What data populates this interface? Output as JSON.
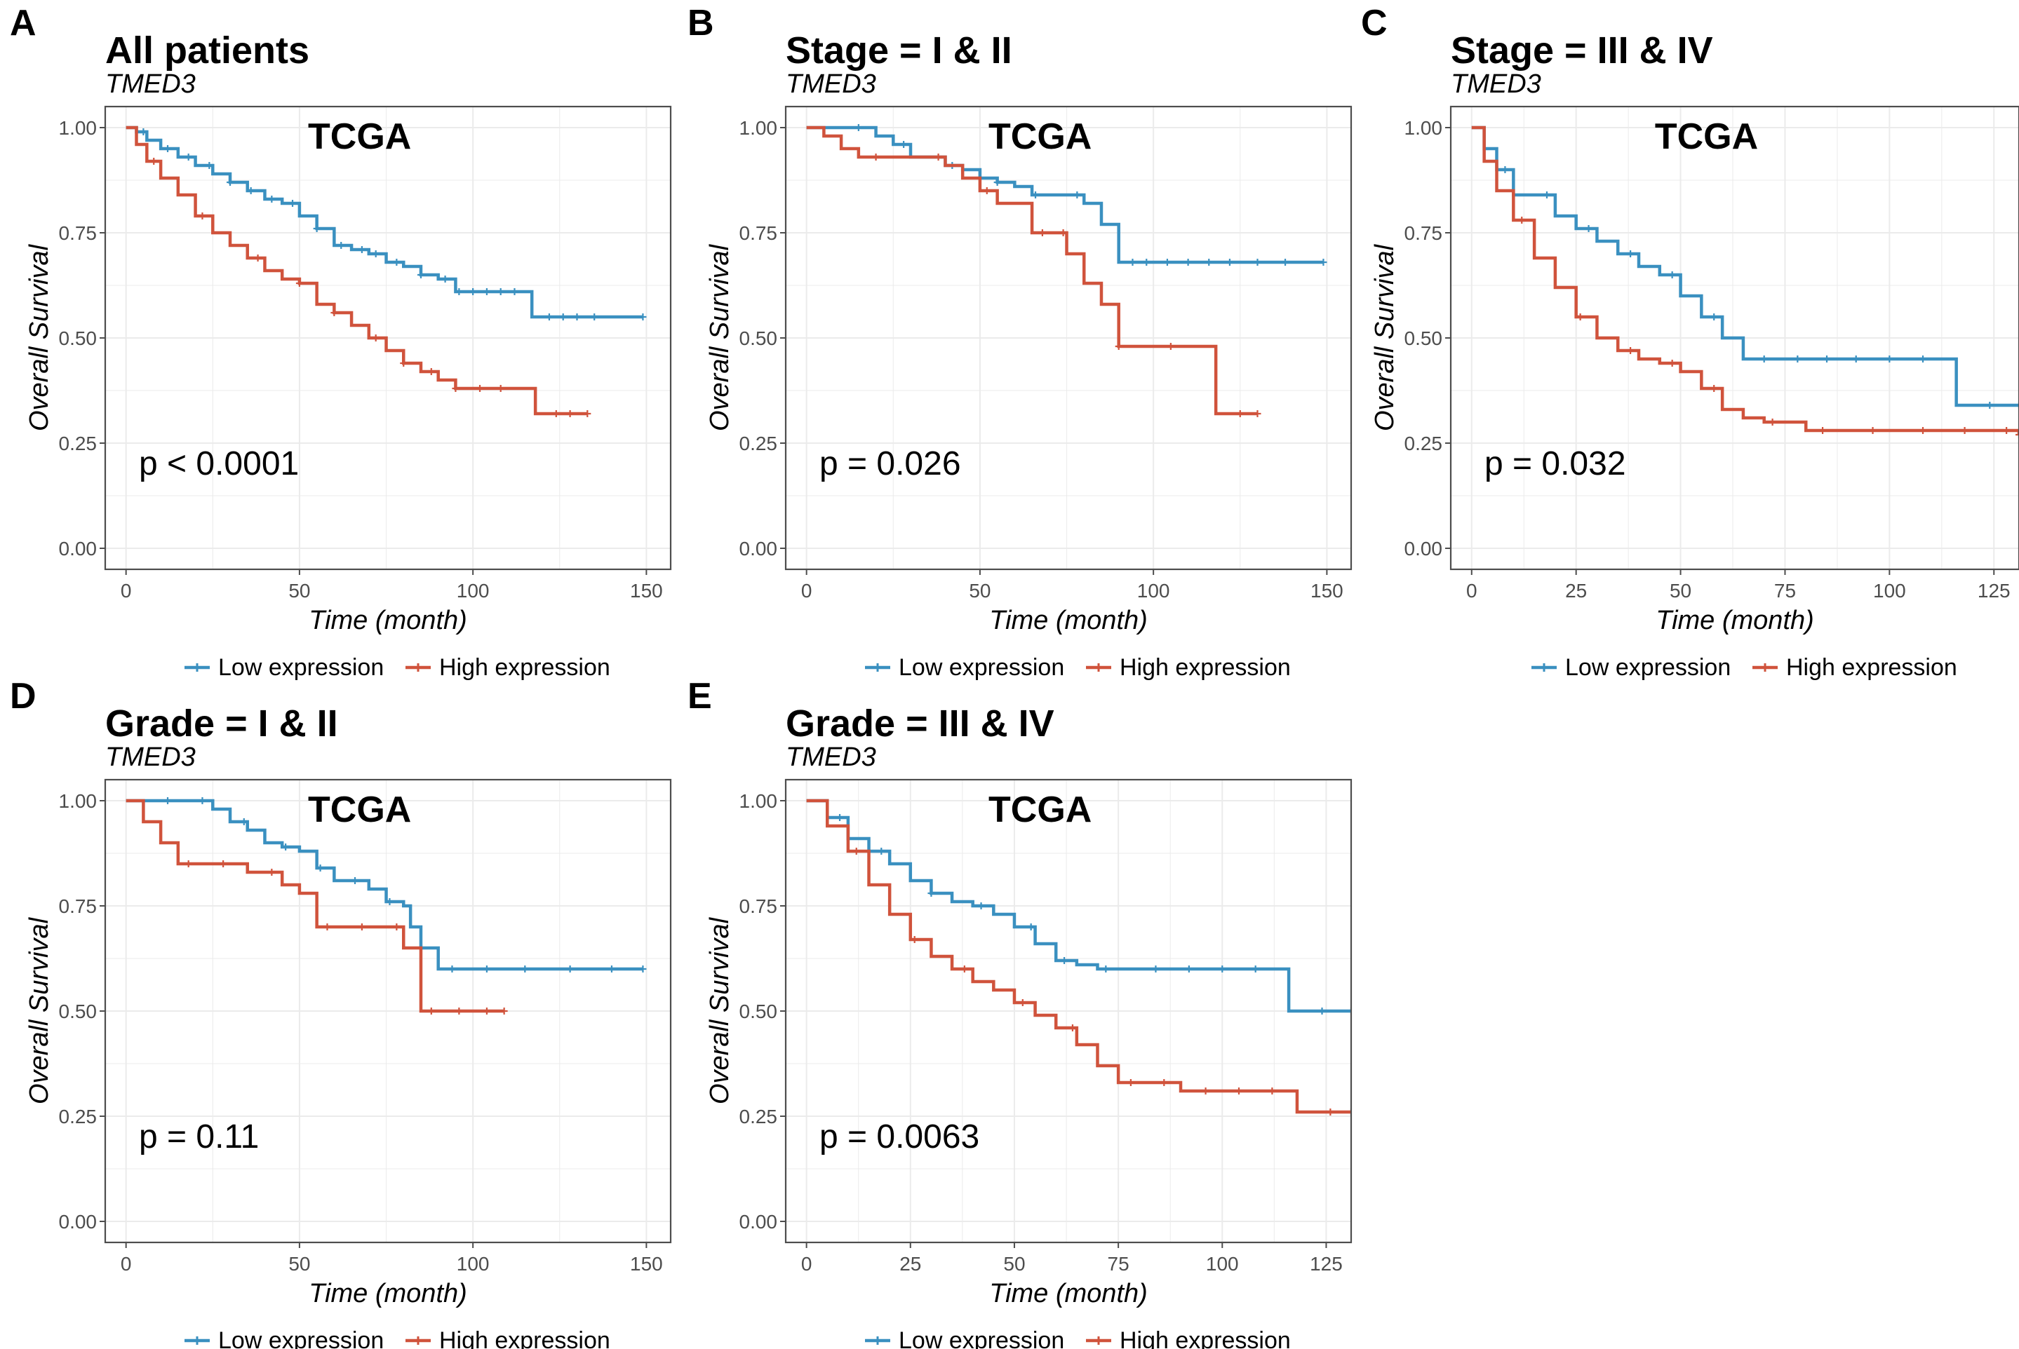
{
  "figure": {
    "colors": {
      "low": "#3a90c0",
      "high": "#d0533c",
      "grid": "#ebebeb",
      "axis": "#4d4d4d",
      "text": "#000000"
    },
    "axis_labels": {
      "y": "Overall Survival",
      "x": "Time (month)"
    },
    "legend": {
      "low": "Low expression",
      "high": "High expression"
    }
  },
  "chart_data": [
    {
      "type": "line",
      "panel": "A",
      "title": "All patients",
      "subtitle": "TMED3",
      "annotation": "TCGA",
      "pvalue": "p < 0.0001",
      "xlabel": "Time (month)",
      "ylabel": "Overall Survival",
      "xlim": [
        -6,
        157
      ],
      "ylim": [
        -0.05,
        1.05
      ],
      "xticks": [
        0,
        50,
        100,
        150
      ],
      "yticks": [
        0.0,
        0.25,
        0.5,
        0.75,
        1.0
      ],
      "series": [
        {
          "name": "Low expression",
          "color": "low",
          "x": [
            0,
            3,
            6,
            10,
            15,
            20,
            25,
            30,
            35,
            40,
            45,
            50,
            55,
            60,
            65,
            70,
            75,
            80,
            85,
            90,
            95,
            100,
            105,
            110,
            115,
            117,
            120,
            130,
            140,
            149
          ],
          "y": [
            1.0,
            0.99,
            0.97,
            0.95,
            0.93,
            0.91,
            0.89,
            0.87,
            0.85,
            0.83,
            0.82,
            0.79,
            0.76,
            0.72,
            0.71,
            0.7,
            0.68,
            0.67,
            0.65,
            0.64,
            0.61,
            0.61,
            0.61,
            0.61,
            0.61,
            0.55,
            0.55,
            0.55,
            0.55,
            0.55
          ],
          "censor": [
            5,
            12,
            18,
            24,
            30,
            36,
            42,
            48,
            55,
            62,
            68,
            72,
            78,
            85,
            92,
            96,
            100,
            104,
            108,
            112,
            122,
            126,
            130,
            135,
            149
          ]
        },
        {
          "name": "High expression",
          "color": "high",
          "x": [
            0,
            3,
            6,
            10,
            15,
            20,
            25,
            30,
            35,
            40,
            45,
            50,
            55,
            60,
            65,
            70,
            75,
            80,
            85,
            90,
            95,
            100,
            110,
            118,
            120,
            125,
            133
          ],
          "y": [
            1.0,
            0.96,
            0.92,
            0.88,
            0.84,
            0.79,
            0.75,
            0.72,
            0.69,
            0.66,
            0.64,
            0.63,
            0.58,
            0.56,
            0.53,
            0.5,
            0.47,
            0.44,
            0.42,
            0.4,
            0.38,
            0.38,
            0.38,
            0.32,
            0.32,
            0.32,
            0.32
          ],
          "censor": [
            8,
            22,
            38,
            50,
            60,
            72,
            80,
            88,
            95,
            102,
            108,
            124,
            128,
            133
          ]
        }
      ]
    },
    {
      "type": "line",
      "panel": "B",
      "title": "Stage = I & II",
      "subtitle": "TMED3",
      "annotation": "TCGA",
      "pvalue": "p = 0.026",
      "xlabel": "Time (month)",
      "ylabel": "Overall Survival",
      "xlim": [
        -6,
        157
      ],
      "ylim": [
        -0.05,
        1.05
      ],
      "xticks": [
        0,
        50,
        100,
        150
      ],
      "yticks": [
        0.0,
        0.25,
        0.5,
        0.75,
        1.0
      ],
      "series": [
        {
          "name": "Low expression",
          "color": "low",
          "x": [
            0,
            10,
            20,
            25,
            30,
            40,
            45,
            50,
            55,
            60,
            65,
            70,
            75,
            80,
            85,
            90,
            95,
            100,
            120,
            140,
            149
          ],
          "y": [
            1.0,
            1.0,
            0.98,
            0.96,
            0.93,
            0.91,
            0.9,
            0.88,
            0.87,
            0.86,
            0.84,
            0.84,
            0.84,
            0.82,
            0.77,
            0.68,
            0.68,
            0.68,
            0.68,
            0.68,
            0.68
          ],
          "censor": [
            15,
            28,
            42,
            55,
            66,
            78,
            94,
            98,
            104,
            110,
            116,
            122,
            130,
            138,
            149
          ]
        },
        {
          "name": "High expression",
          "color": "high",
          "x": [
            0,
            5,
            10,
            15,
            30,
            40,
            45,
            50,
            55,
            60,
            65,
            70,
            75,
            80,
            85,
            90,
            100,
            110,
            118,
            125,
            130
          ],
          "y": [
            1.0,
            0.98,
            0.95,
            0.93,
            0.93,
            0.91,
            0.88,
            0.85,
            0.82,
            0.82,
            0.75,
            0.75,
            0.7,
            0.63,
            0.58,
            0.48,
            0.48,
            0.48,
            0.32,
            0.32,
            0.32
          ],
          "censor": [
            20,
            38,
            52,
            68,
            74,
            90,
            105,
            125,
            130
          ]
        }
      ]
    },
    {
      "type": "line",
      "panel": "C",
      "title": "Stage = III & IV",
      "subtitle": "TMED3",
      "annotation": "TCGA",
      "pvalue": "p = 0.032",
      "xlabel": "Time (month)",
      "ylabel": "Overall Survival",
      "xlim": [
        -5,
        131
      ],
      "ylim": [
        -0.05,
        1.05
      ],
      "xticks": [
        0,
        25,
        50,
        75,
        100,
        125
      ],
      "yticks": [
        0.0,
        0.25,
        0.5,
        0.75,
        1.0
      ],
      "series": [
        {
          "name": "Low expression",
          "color": "low",
          "x": [
            0,
            3,
            6,
            10,
            15,
            20,
            25,
            30,
            35,
            40,
            45,
            50,
            55,
            60,
            65,
            75,
            100,
            116,
            120,
            131
          ],
          "y": [
            1.0,
            0.95,
            0.9,
            0.84,
            0.84,
            0.79,
            0.76,
            0.73,
            0.7,
            0.67,
            0.65,
            0.6,
            0.55,
            0.5,
            0.45,
            0.45,
            0.45,
            0.34,
            0.34,
            0.34
          ],
          "censor": [
            8,
            18,
            28,
            38,
            48,
            58,
            70,
            78,
            85,
            92,
            100,
            108,
            124,
            131
          ]
        },
        {
          "name": "High expression",
          "color": "high",
          "x": [
            0,
            3,
            6,
            10,
            15,
            20,
            25,
            30,
            35,
            40,
            45,
            50,
            55,
            60,
            65,
            70,
            80,
            90,
            100,
            131
          ],
          "y": [
            1.0,
            0.92,
            0.85,
            0.78,
            0.69,
            0.62,
            0.55,
            0.5,
            0.47,
            0.45,
            0.44,
            0.42,
            0.38,
            0.33,
            0.31,
            0.3,
            0.28,
            0.28,
            0.28,
            0.27
          ],
          "censor": [
            12,
            26,
            38,
            48,
            58,
            72,
            84,
            96,
            108,
            118,
            128,
            131
          ]
        }
      ]
    },
    {
      "type": "line",
      "panel": "D",
      "title": "Grade = I & II",
      "subtitle": "TMED3",
      "annotation": "TCGA",
      "pvalue": "p = 0.11",
      "xlabel": "Time (month)",
      "ylabel": "Overall Survival",
      "xlim": [
        -6,
        157
      ],
      "ylim": [
        -0.05,
        1.05
      ],
      "xticks": [
        0,
        50,
        100,
        150
      ],
      "yticks": [
        0.0,
        0.25,
        0.5,
        0.75,
        1.0
      ],
      "series": [
        {
          "name": "Low expression",
          "color": "low",
          "x": [
            0,
            10,
            20,
            25,
            30,
            35,
            40,
            45,
            50,
            55,
            60,
            70,
            75,
            80,
            82,
            85,
            90,
            100,
            120,
            149
          ],
          "y": [
            1.0,
            1.0,
            1.0,
            0.98,
            0.95,
            0.93,
            0.9,
            0.89,
            0.88,
            0.84,
            0.81,
            0.79,
            0.76,
            0.75,
            0.7,
            0.65,
            0.6,
            0.6,
            0.6,
            0.6
          ],
          "censor": [
            12,
            22,
            34,
            46,
            56,
            66,
            76,
            94,
            104,
            115,
            128,
            140,
            149
          ]
        },
        {
          "name": "High expression",
          "color": "high",
          "x": [
            0,
            5,
            10,
            15,
            20,
            30,
            35,
            40,
            45,
            50,
            55,
            60,
            65,
            70,
            75,
            80,
            85,
            90,
            100,
            109
          ],
          "y": [
            1.0,
            0.95,
            0.9,
            0.85,
            0.85,
            0.85,
            0.83,
            0.83,
            0.8,
            0.78,
            0.7,
            0.7,
            0.7,
            0.7,
            0.7,
            0.65,
            0.5,
            0.5,
            0.5,
            0.5
          ],
          "censor": [
            18,
            28,
            42,
            58,
            68,
            78,
            88,
            96,
            104,
            109
          ]
        }
      ]
    },
    {
      "type": "line",
      "panel": "E",
      "title": "Grade = III & IV",
      "subtitle": "TMED3",
      "annotation": "TCGA",
      "pvalue": "p = 0.0063",
      "xlabel": "Time (month)",
      "ylabel": "Overall Survival",
      "xlim": [
        -5,
        131
      ],
      "ylim": [
        -0.05,
        1.05
      ],
      "xticks": [
        0,
        25,
        50,
        75,
        100,
        125
      ],
      "yticks": [
        0.0,
        0.25,
        0.5,
        0.75,
        1.0
      ],
      "series": [
        {
          "name": "Low expression",
          "color": "low",
          "x": [
            0,
            5,
            10,
            15,
            20,
            25,
            30,
            35,
            40,
            45,
            50,
            55,
            60,
            65,
            70,
            80,
            100,
            116,
            120,
            131
          ],
          "y": [
            1.0,
            0.96,
            0.91,
            0.88,
            0.85,
            0.81,
            0.78,
            0.76,
            0.75,
            0.73,
            0.7,
            0.66,
            0.62,
            0.61,
            0.6,
            0.6,
            0.6,
            0.5,
            0.5,
            0.5
          ],
          "censor": [
            8,
            18,
            30,
            42,
            54,
            62,
            72,
            84,
            92,
            100,
            108,
            124,
            131
          ]
        },
        {
          "name": "High expression",
          "color": "high",
          "x": [
            0,
            5,
            10,
            15,
            20,
            25,
            30,
            35,
            40,
            45,
            50,
            55,
            60,
            65,
            70,
            75,
            80,
            90,
            100,
            118,
            120,
            131
          ],
          "y": [
            1.0,
            0.94,
            0.88,
            0.8,
            0.73,
            0.67,
            0.63,
            0.6,
            0.57,
            0.55,
            0.52,
            0.49,
            0.46,
            0.42,
            0.37,
            0.33,
            0.33,
            0.31,
            0.31,
            0.26,
            0.26,
            0.26
          ],
          "censor": [
            12,
            26,
            38,
            52,
            64,
            78,
            86,
            96,
            104,
            112,
            126,
            131
          ]
        }
      ]
    }
  ]
}
